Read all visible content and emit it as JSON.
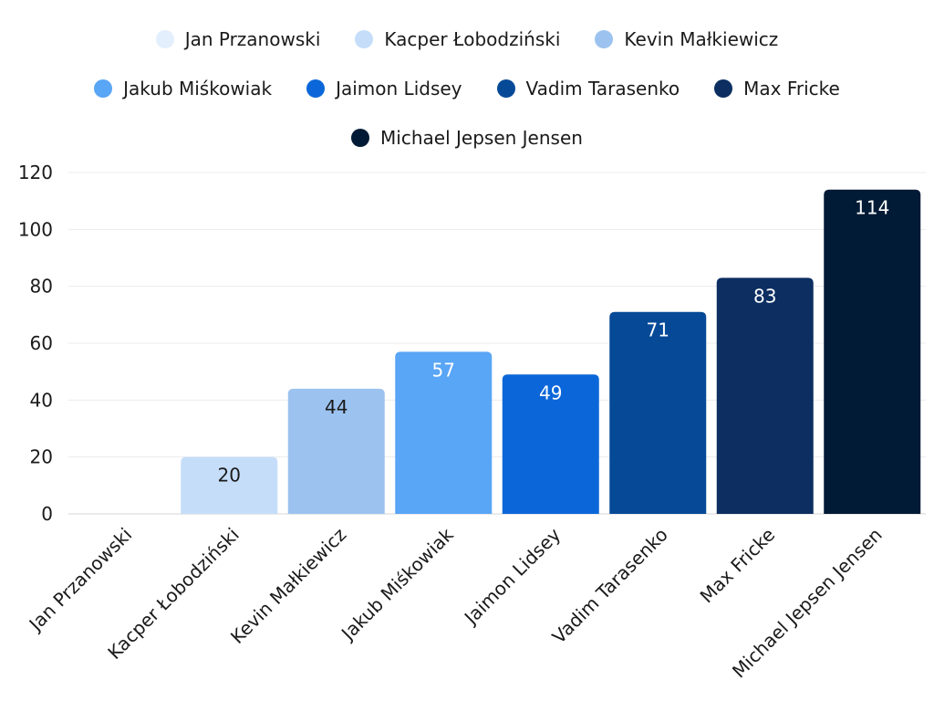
{
  "chart_data": {
    "type": "bar",
    "categories": [
      "Jan Przanowski",
      "Kacper Łobodziński",
      "Kevin Małkiewicz",
      "Jakub Miśkowiak",
      "Jaimon Lidsey",
      "Vadim Tarasenko",
      "Max Fricke",
      "Michael Jepsen Jensen"
    ],
    "values": [
      0,
      20,
      44,
      57,
      49,
      71,
      83,
      114
    ],
    "colors": [
      "#e3effc",
      "#c5ddf9",
      "#9cc3ef",
      "#59a5f6",
      "#0b67d9",
      "#064a97",
      "#0c2e61",
      "#011a35"
    ],
    "label_colors": [
      "#1a1a1a",
      "#1a1a1a",
      "#1a1a1a",
      "#ffffff",
      "#ffffff",
      "#ffffff",
      "#ffffff",
      "#ffffff"
    ],
    "title": "",
    "xlabel": "",
    "ylabel": "",
    "ylim": [
      0,
      120
    ],
    "yticks": [
      0,
      20,
      40,
      60,
      80,
      100,
      120
    ],
    "grid": true,
    "legend_position": "top"
  }
}
